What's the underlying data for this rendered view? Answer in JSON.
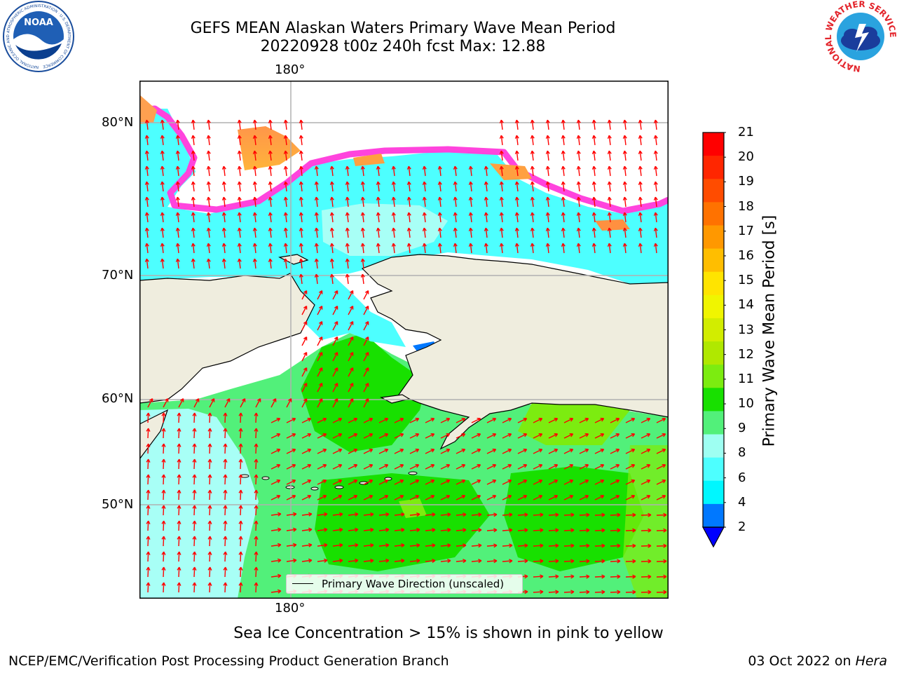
{
  "header": {
    "title_line1": "GEFS MEAN Alaskan Waters Primary Wave Mean Period",
    "title_line2": "20220928 t00z 240h fcst   Max: 12.88"
  },
  "map": {
    "lon_label_top": "180°",
    "lon_label_bottom": "180°",
    "lat_labels": [
      "80°N",
      "70°N",
      "60°N",
      "50°N"
    ],
    "legend_label": "Primary Wave Direction (unscaled)",
    "arrow_color": "#ff0000",
    "land_color": "#efedde"
  },
  "colorbar": {
    "label": "Primary Wave Mean Period [s]",
    "ticks": [
      "21",
      "20",
      "19",
      "18",
      "17",
      "16",
      "15",
      "14",
      "13",
      "12",
      "11",
      "10",
      "9",
      "8",
      "6",
      "4",
      "2"
    ],
    "colors": [
      "#ff0000",
      "#ff2600",
      "#ff4c00",
      "#ff7200",
      "#ff9800",
      "#ffbe00",
      "#ffe400",
      "#f0f500",
      "#d2ed00",
      "#b0e800",
      "#7cec10",
      "#18e000",
      "#52f07a",
      "#9efff2",
      "#4dffff",
      "#00f7ff",
      "#0078ff"
    ],
    "extend_color": "#0000ff"
  },
  "footer": {
    "ice_note": "Sea Ice Concentration > 15% is shown in pink to yellow",
    "credit": "NCEP/EMC/Verification Post Processing Product Generation Branch",
    "date": "03 Oct 2022 on",
    "machine": "Hera"
  },
  "logos": {
    "left": "NOAA",
    "left_ring": "NATIONAL OCEANIC AND ATMOSPHERIC ADMINISTRATION · U.S. DEPARTMENT OF COMMERCE",
    "right_ring": "NATIONAL WEATHER SERVICE"
  }
}
